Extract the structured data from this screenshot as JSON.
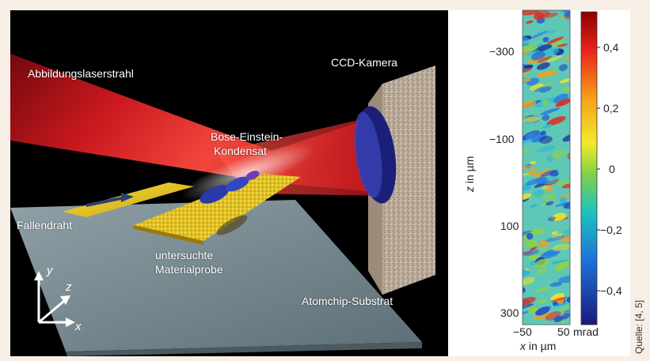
{
  "labels": {
    "laser": "Abbildungslaserstrahl",
    "camera": "CCD-Kamera",
    "bec_line1": "Bose-Einstein-",
    "bec_line2": "Kondensat",
    "wire": "Fallendraht",
    "sample_line1": "untersuchte",
    "sample_line2": "Materialprobe",
    "substrate": "Atomchip-Substrat"
  },
  "axes3d": {
    "y": "y",
    "z": "z",
    "x": "x"
  },
  "phase_map": {
    "z_ticks": [
      "−300",
      "−100",
      "100",
      "300"
    ],
    "x_ticks": [
      "−50",
      "50"
    ],
    "xlabel_var": "x",
    "xlabel_unit": " in µm",
    "ylabel_var": "z",
    "ylabel_unit": " in µm",
    "colorbar_ticks": [
      "0,4",
      "0,2",
      "0",
      "−0,2",
      "−0,4"
    ],
    "colorbar_unit": "mrad"
  },
  "source": "Quelle: [4, 5]",
  "colors": {
    "laser": "#c8141c",
    "gold": "#e6c21a",
    "substrate": "#7f9299",
    "lens": "#1b1f7a"
  }
}
